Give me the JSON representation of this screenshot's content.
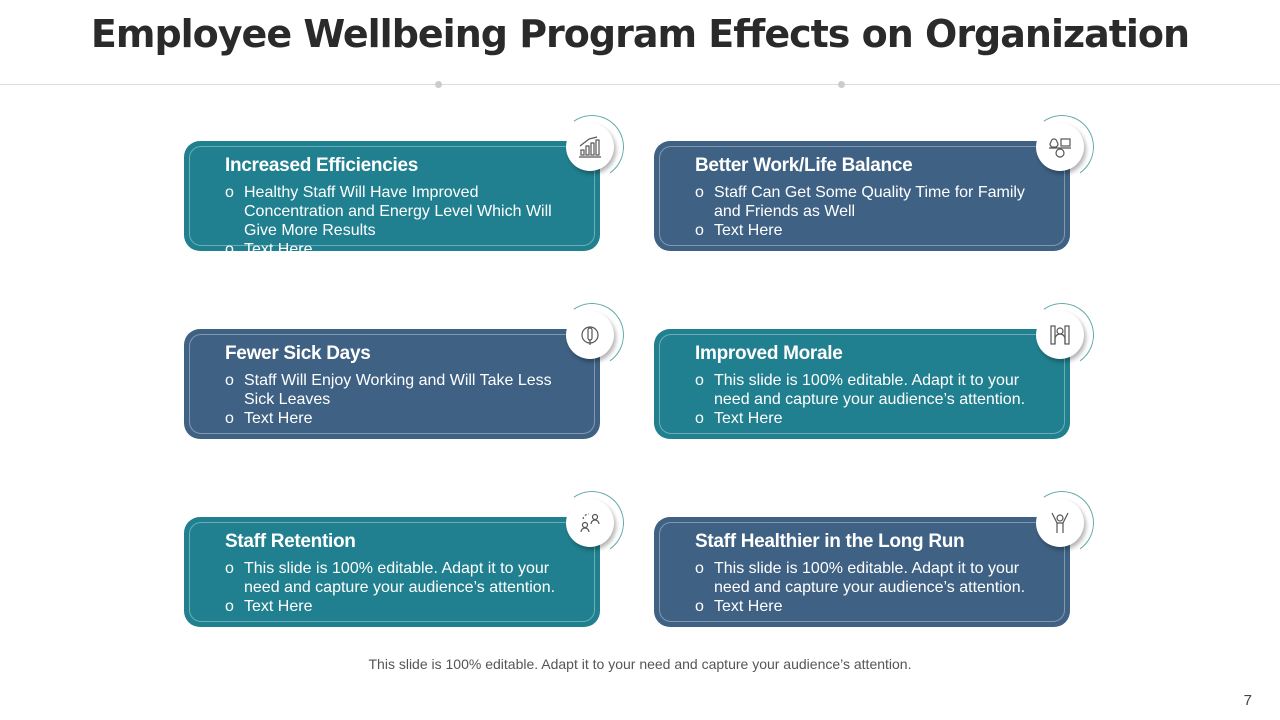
{
  "title": "Employee Wellbeing Program Effects on Organization",
  "cards": [
    {
      "title": "Increased Efficiencies",
      "items": [
        "Healthy Staff Will Have Improved Concentration and Energy Level Which Will Give More Results",
        "Text Here"
      ],
      "icon": "bar-chart-icon"
    },
    {
      "title": "Better Work/Life Balance",
      "items": [
        "Staff Can Get Some Quality Time for Family and Friends as Well",
        "Text Here"
      ],
      "icon": "balance-icon"
    },
    {
      "title": "Fewer Sick Days",
      "items": [
        "Staff Will Enjoy Working and Will Take Less Sick Leaves",
        "Text Here"
      ],
      "icon": "thermometer-icon"
    },
    {
      "title": "Improved Morale",
      "items": [
        "This slide is 100% editable. Adapt it to your need and capture your audience’s attention.",
        "Text Here"
      ],
      "icon": "person-icon"
    },
    {
      "title": "Staff Retention",
      "items": [
        "This slide is 100% editable. Adapt it to your need and capture your audience’s attention.",
        "Text Here"
      ],
      "icon": "people-icon"
    },
    {
      "title": "Staff Healthier in the Long Run",
      "items": [
        "This slide is 100% editable. Adapt it to your need and capture your audience’s attention.",
        "Text Here"
      ],
      "icon": "cheering-person-icon"
    }
  ],
  "footer": "This slide is 100% editable. Adapt it to your need and capture your audience’s attention.",
  "page_number": "7",
  "colors": {
    "teal": "#21808f",
    "blue": "#3f6284"
  }
}
